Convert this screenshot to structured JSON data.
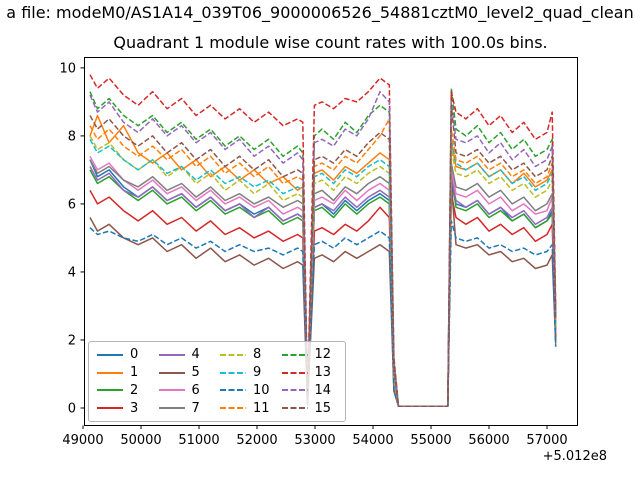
{
  "figure": {
    "suptitle": "a file: modeM0/AS1A14_039T06_9000006526_54881cztM0_level2_quad_clean",
    "axes_title": "Quadrant 1 module wise count rates with 100.0s bins.",
    "x_offset_label": "+5.012e8",
    "background": "#ffffff"
  },
  "chart_data": {
    "type": "line",
    "title": "Quadrant 1 module wise count rates with 100.0s bins.",
    "xlabel": "",
    "ylabel": "",
    "grid": false,
    "legend_position": "lower-left inside, 4 columns",
    "x_axis_offset": "+5.012e8",
    "xlim": [
      49017,
      57517
    ],
    "ylim": [
      -0.5,
      10.32
    ],
    "xticks": [
      49000,
      50000,
      51000,
      52000,
      53000,
      54000,
      55000,
      56000,
      57000
    ],
    "xtick_labels": [
      "49000",
      "50000",
      "51000",
      "52000",
      "53000",
      "54000",
      "55000",
      "56000",
      "57000"
    ],
    "yticks": [
      0,
      2,
      4,
      6,
      8,
      10
    ],
    "ytick_labels": [
      "0",
      "2",
      "4",
      "6",
      "8",
      "10"
    ],
    "x": [
      49120,
      49250,
      49450,
      49700,
      49950,
      50200,
      50450,
      50700,
      50950,
      51200,
      51450,
      51700,
      51950,
      52200,
      52450,
      52700,
      52790,
      52870,
      52990,
      53120,
      53320,
      53520,
      53720,
      53920,
      54120,
      54280,
      54360,
      54440,
      54800,
      55150,
      55290,
      55350,
      55430,
      55600,
      55800,
      56000,
      56200,
      56400,
      56600,
      56800,
      57000,
      57090,
      57150
    ],
    "series": [
      {
        "name": "0",
        "color": "#1f77b4",
        "style": "solid",
        "values": [
          7.3,
          6.8,
          7.0,
          6.5,
          6.2,
          6.5,
          6.1,
          6.3,
          5.9,
          6.2,
          5.8,
          6.0,
          5.7,
          5.9,
          5.5,
          5.7,
          5.6,
          0.1,
          5.9,
          6.0,
          5.7,
          6.1,
          5.8,
          6.1,
          6.3,
          6.1,
          0.8,
          0.05,
          0.05,
          0.05,
          0.05,
          6.6,
          6.0,
          5.9,
          6.1,
          5.7,
          5.9,
          5.5,
          5.7,
          5.3,
          5.5,
          5.8,
          2.1
        ]
      },
      {
        "name": "1",
        "color": "#ff7f0e",
        "style": "solid",
        "values": [
          8.0,
          8.6,
          7.8,
          8.3,
          7.5,
          7.2,
          7.5,
          7.0,
          7.3,
          6.8,
          7.1,
          6.7,
          7.0,
          6.6,
          6.8,
          6.4,
          6.5,
          0.2,
          6.9,
          7.0,
          6.7,
          7.1,
          6.9,
          7.2,
          7.5,
          7.3,
          1.0,
          0.05,
          0.05,
          0.05,
          0.05,
          7.8,
          7.1,
          7.0,
          7.2,
          6.8,
          7.0,
          6.6,
          6.9,
          6.5,
          6.7,
          7.0,
          2.4
        ]
      },
      {
        "name": "2",
        "color": "#2ca02c",
        "style": "solid",
        "values": [
          7.0,
          6.6,
          6.8,
          6.4,
          6.1,
          6.4,
          6.0,
          6.2,
          5.8,
          6.1,
          5.7,
          5.9,
          5.6,
          5.8,
          5.4,
          5.6,
          5.5,
          0.1,
          5.8,
          5.9,
          5.6,
          6.0,
          5.7,
          6.0,
          6.2,
          6.0,
          0.7,
          0.05,
          0.05,
          0.05,
          0.05,
          6.9,
          5.9,
          5.8,
          6.0,
          5.6,
          5.8,
          5.5,
          5.7,
          5.3,
          5.5,
          5.7,
          2.1
        ]
      },
      {
        "name": "3",
        "color": "#d62728",
        "style": "solid",
        "values": [
          6.4,
          6.0,
          6.2,
          5.8,
          5.5,
          5.8,
          5.4,
          5.6,
          5.2,
          5.5,
          5.1,
          5.3,
          5.0,
          5.2,
          4.9,
          5.1,
          5.0,
          0.1,
          5.2,
          5.3,
          5.1,
          5.4,
          5.2,
          5.5,
          5.9,
          5.6,
          0.6,
          0.05,
          0.05,
          0.05,
          0.05,
          6.3,
          5.6,
          5.4,
          5.6,
          5.2,
          5.4,
          5.1,
          5.3,
          4.9,
          5.1,
          5.4,
          2.0
        ]
      },
      {
        "name": "4",
        "color": "#9467bd",
        "style": "solid",
        "values": [
          7.1,
          6.7,
          6.9,
          6.4,
          6.2,
          6.5,
          6.1,
          6.3,
          5.9,
          6.2,
          5.8,
          6.0,
          5.6,
          5.9,
          5.5,
          5.7,
          5.6,
          0.1,
          5.9,
          6.0,
          5.8,
          6.2,
          5.9,
          6.2,
          6.4,
          6.2,
          0.7,
          0.05,
          0.05,
          0.05,
          0.05,
          6.8,
          6.1,
          5.9,
          6.1,
          5.7,
          5.9,
          5.6,
          5.8,
          5.4,
          5.6,
          5.9,
          2.2
        ]
      },
      {
        "name": "5",
        "color": "#8c564b",
        "style": "solid",
        "values": [
          5.6,
          5.2,
          5.4,
          5.0,
          4.8,
          5.0,
          4.6,
          4.8,
          4.4,
          4.7,
          4.3,
          4.5,
          4.2,
          4.4,
          4.1,
          4.3,
          4.2,
          0.1,
          4.4,
          4.5,
          4.3,
          4.6,
          4.4,
          4.6,
          4.8,
          4.6,
          0.5,
          0.05,
          0.05,
          0.05,
          0.05,
          6.6,
          4.8,
          4.7,
          4.8,
          4.5,
          4.6,
          4.3,
          4.4,
          4.1,
          4.2,
          4.5,
          1.9
        ]
      },
      {
        "name": "6",
        "color": "#e377c2",
        "style": "solid",
        "values": [
          7.4,
          7.0,
          7.2,
          6.7,
          6.4,
          6.7,
          6.3,
          6.5,
          6.1,
          6.4,
          6.0,
          6.2,
          5.9,
          6.1,
          5.7,
          5.9,
          5.8,
          0.15,
          6.1,
          6.2,
          6.0,
          6.4,
          6.1,
          6.4,
          6.6,
          6.4,
          0.8,
          0.05,
          0.05,
          0.05,
          0.05,
          7.0,
          6.3,
          6.2,
          6.4,
          6.0,
          6.2,
          5.8,
          6.0,
          5.7,
          5.8,
          6.2,
          2.2
        ]
      },
      {
        "name": "7",
        "color": "#7f7f7f",
        "style": "solid",
        "values": [
          7.3,
          6.9,
          7.1,
          6.7,
          6.5,
          6.8,
          6.4,
          6.6,
          6.2,
          6.5,
          6.1,
          6.3,
          6.0,
          6.2,
          5.9,
          6.1,
          6.0,
          0.15,
          6.3,
          6.4,
          6.1,
          6.5,
          6.3,
          6.6,
          6.8,
          6.6,
          0.9,
          0.05,
          0.05,
          0.05,
          0.05,
          7.2,
          6.5,
          6.4,
          6.6,
          6.2,
          6.4,
          6.0,
          6.2,
          5.8,
          6.0,
          6.3,
          2.3
        ]
      },
      {
        "name": "8",
        "color": "#bcbd22",
        "style": "dashed",
        "values": [
          8.0,
          7.6,
          7.8,
          7.3,
          7.0,
          7.3,
          6.8,
          7.1,
          6.6,
          6.9,
          6.4,
          6.7,
          6.3,
          6.6,
          6.1,
          6.3,
          6.2,
          0.15,
          6.6,
          6.7,
          6.4,
          6.8,
          6.6,
          6.9,
          7.1,
          6.9,
          0.9,
          0.05,
          0.05,
          0.05,
          0.05,
          7.6,
          6.9,
          6.8,
          7.0,
          6.6,
          6.8,
          6.4,
          6.6,
          6.2,
          6.4,
          6.7,
          2.4
        ]
      },
      {
        "name": "9",
        "color": "#17becf",
        "style": "dashed",
        "values": [
          7.9,
          7.5,
          7.7,
          7.3,
          7.0,
          7.3,
          6.9,
          7.1,
          6.7,
          7.0,
          6.6,
          6.8,
          6.5,
          6.7,
          6.3,
          6.5,
          6.4,
          0.2,
          6.8,
          6.9,
          6.6,
          7.0,
          6.8,
          7.1,
          7.3,
          7.1,
          1.0,
          0.05,
          0.05,
          0.05,
          0.05,
          7.9,
          7.2,
          7.0,
          7.2,
          6.8,
          7.0,
          6.6,
          6.8,
          6.4,
          6.6,
          6.9,
          2.5
        ]
      },
      {
        "name": "10",
        "color": "#1f77b4",
        "style": "dashed",
        "values": [
          5.3,
          5.1,
          5.2,
          5.0,
          4.9,
          5.1,
          4.8,
          5.0,
          4.7,
          4.9,
          4.6,
          4.8,
          4.6,
          4.7,
          4.5,
          4.7,
          4.6,
          0.1,
          4.8,
          4.9,
          4.7,
          5.0,
          4.8,
          5.0,
          5.2,
          5.0,
          0.5,
          0.05,
          0.05,
          0.05,
          0.05,
          5.5,
          5.0,
          4.9,
          5.0,
          4.7,
          4.8,
          4.6,
          4.7,
          4.5,
          4.6,
          4.8,
          1.8
        ]
      },
      {
        "name": "11",
        "color": "#ff7f0e",
        "style": "dashed",
        "values": [
          8.3,
          7.9,
          8.2,
          7.7,
          7.4,
          7.7,
          7.3,
          7.6,
          7.1,
          7.4,
          6.9,
          7.2,
          6.8,
          7.1,
          6.6,
          6.8,
          6.7,
          0.2,
          7.1,
          7.2,
          7.0,
          7.4,
          7.2,
          7.6,
          8.0,
          8.5,
          1.1,
          0.05,
          0.05,
          0.05,
          0.05,
          8.2,
          7.3,
          7.2,
          7.4,
          7.0,
          7.2,
          6.8,
          7.0,
          6.6,
          6.8,
          7.2,
          2.6
        ]
      },
      {
        "name": "12",
        "color": "#2ca02c",
        "style": "dashed",
        "values": [
          9.3,
          8.8,
          9.1,
          8.6,
          8.3,
          8.6,
          8.1,
          8.4,
          7.9,
          8.2,
          7.7,
          8.0,
          7.6,
          7.9,
          7.4,
          7.7,
          7.5,
          0.25,
          8.0,
          8.2,
          7.9,
          8.4,
          8.1,
          8.6,
          8.9,
          8.7,
          1.4,
          0.05,
          0.05,
          0.05,
          0.05,
          9.4,
          8.2,
          8.0,
          8.3,
          7.8,
          8.1,
          7.6,
          7.9,
          7.4,
          7.6,
          7.9,
          2.8
        ]
      },
      {
        "name": "13",
        "color": "#d62728",
        "style": "dashed",
        "values": [
          9.8,
          9.4,
          9.7,
          9.2,
          8.9,
          9.3,
          8.8,
          9.1,
          8.6,
          8.9,
          8.5,
          8.8,
          8.4,
          8.7,
          8.3,
          8.5,
          8.4,
          0.3,
          8.9,
          9.0,
          8.8,
          9.1,
          9.0,
          9.3,
          9.7,
          9.5,
          1.5,
          0.05,
          0.05,
          0.05,
          0.05,
          9.3,
          8.7,
          8.5,
          8.8,
          8.3,
          8.6,
          8.1,
          8.4,
          7.9,
          8.1,
          8.7,
          3.0
        ]
      },
      {
        "name": "14",
        "color": "#9467bd",
        "style": "dashed",
        "values": [
          9.2,
          8.7,
          9.0,
          8.4,
          8.1,
          8.5,
          8.0,
          8.3,
          7.8,
          8.1,
          7.6,
          7.9,
          7.4,
          7.7,
          7.2,
          7.5,
          7.3,
          0.3,
          7.8,
          7.9,
          7.7,
          8.2,
          8.0,
          8.5,
          9.3,
          9.0,
          1.3,
          0.05,
          0.05,
          0.05,
          0.05,
          9.0,
          7.9,
          7.8,
          8.0,
          7.5,
          7.8,
          7.3,
          7.6,
          7.1,
          7.3,
          7.7,
          2.7
        ]
      },
      {
        "name": "15",
        "color": "#8c564b",
        "style": "dashed",
        "values": [
          8.6,
          8.2,
          8.5,
          8.0,
          7.7,
          8.0,
          7.5,
          7.8,
          7.3,
          7.6,
          7.1,
          7.4,
          7.0,
          7.3,
          6.8,
          7.0,
          6.9,
          0.25,
          7.3,
          7.4,
          7.2,
          7.6,
          7.4,
          7.8,
          8.1,
          7.9,
          1.2,
          0.05,
          0.05,
          0.05,
          0.05,
          8.9,
          7.5,
          7.4,
          7.6,
          7.2,
          7.4,
          7.0,
          7.2,
          6.8,
          7.0,
          7.4,
          2.6
        ]
      }
    ]
  }
}
